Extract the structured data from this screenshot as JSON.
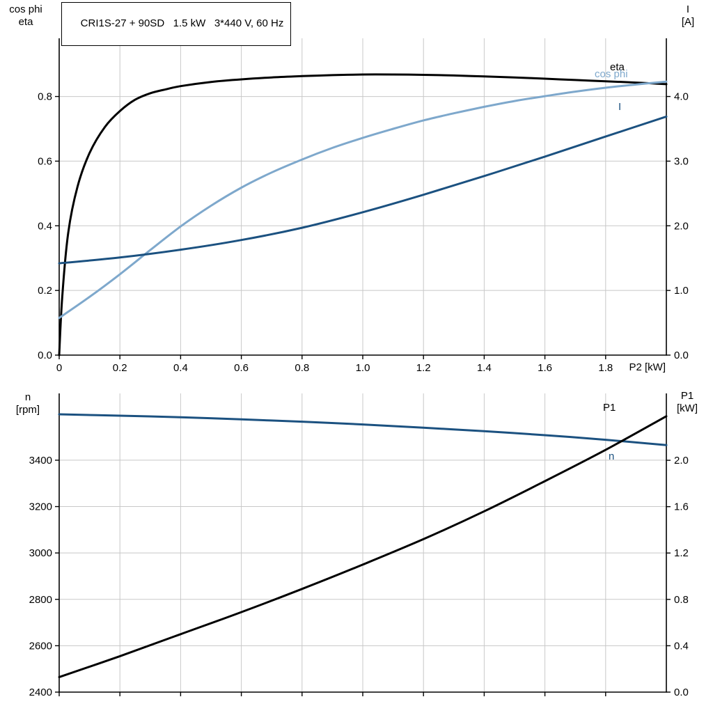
{
  "title_box": {
    "text": "CRI1S-27 + 90SD   1.5 kW   3*440 V, 60 Hz"
  },
  "colors": {
    "black": "#000000",
    "dark_blue": "#1b5180",
    "light_blue": "#7ea8cc",
    "grid": "#c8c8c8"
  },
  "axis_corner_labels": {
    "top_left_line1": "cos phi",
    "top_left_line2": "eta",
    "top_right_line1": "I",
    "top_right_line2": "[A]",
    "x_axis_label": "P2 [kW]",
    "bottom_left_line1": "n",
    "bottom_left_line2": "[rpm]",
    "bottom_right_line1": "P1",
    "bottom_right_line2": "[kW]"
  },
  "chart_data": [
    {
      "type": "line",
      "title": "CRI1S-27 + 90SD   1.5 kW   3*440 V, 60 Hz",
      "x_axis": {
        "label": "P2 [kW]",
        "min": 0,
        "max": 2.0,
        "ticks": [
          0,
          0.2,
          0.4,
          0.6,
          0.8,
          1.0,
          1.2,
          1.4,
          1.6,
          1.8
        ],
        "tick_labels": [
          "0",
          "0.2",
          "0.4",
          "0.6",
          "0.8",
          "1.0",
          "1.2",
          "1.4",
          "1.6",
          "1.8"
        ]
      },
      "y_left_axis": {
        "label": "cos phi / eta",
        "min": 0,
        "max": 0.98,
        "ticks": [
          0.0,
          0.2,
          0.4,
          0.6,
          0.8
        ],
        "tick_labels": [
          "0.0",
          "0.2",
          "0.4",
          "0.6",
          "0.8"
        ]
      },
      "y_right_axis": {
        "label": "I [A]",
        "min": 0,
        "max": 4.9,
        "ticks": [
          0.0,
          1.0,
          2.0,
          3.0,
          4.0
        ],
        "tick_labels": [
          "0.0",
          "1.0",
          "2.0",
          "3.0",
          "4.0"
        ]
      },
      "grid": true,
      "legend_position": "curve-end-labels",
      "series": [
        {
          "name": "eta",
          "axis": "left",
          "color": "#000000",
          "points": [
            [
              0,
              0.0
            ],
            [
              0.01,
              0.18
            ],
            [
              0.03,
              0.38
            ],
            [
              0.06,
              0.52
            ],
            [
              0.1,
              0.625
            ],
            [
              0.15,
              0.705
            ],
            [
              0.2,
              0.755
            ],
            [
              0.25,
              0.79
            ],
            [
              0.3,
              0.81
            ],
            [
              0.35,
              0.822
            ],
            [
              0.4,
              0.832
            ],
            [
              0.5,
              0.845
            ],
            [
              0.6,
              0.853
            ],
            [
              0.7,
              0.859
            ],
            [
              0.8,
              0.863
            ],
            [
              0.9,
              0.866
            ],
            [
              1.0,
              0.868
            ],
            [
              1.1,
              0.868
            ],
            [
              1.2,
              0.867
            ],
            [
              1.3,
              0.865
            ],
            [
              1.4,
              0.862
            ],
            [
              1.5,
              0.859
            ],
            [
              1.6,
              0.855
            ],
            [
              1.7,
              0.851
            ],
            [
              1.8,
              0.847
            ],
            [
              1.9,
              0.843
            ],
            [
              2.0,
              0.838
            ]
          ]
        },
        {
          "name": "cos phi",
          "axis": "left",
          "color": "#7ea8cc",
          "points": [
            [
              0,
              0.115
            ],
            [
              0.1,
              0.18
            ],
            [
              0.2,
              0.25
            ],
            [
              0.3,
              0.325
            ],
            [
              0.4,
              0.398
            ],
            [
              0.5,
              0.462
            ],
            [
              0.6,
              0.518
            ],
            [
              0.7,
              0.565
            ],
            [
              0.8,
              0.605
            ],
            [
              0.9,
              0.641
            ],
            [
              1.0,
              0.672
            ],
            [
              1.1,
              0.7
            ],
            [
              1.2,
              0.726
            ],
            [
              1.3,
              0.748
            ],
            [
              1.4,
              0.768
            ],
            [
              1.5,
              0.786
            ],
            [
              1.6,
              0.801
            ],
            [
              1.7,
              0.815
            ],
            [
              1.8,
              0.827
            ],
            [
              1.9,
              0.837
            ],
            [
              2.0,
              0.846
            ]
          ]
        },
        {
          "name": "I",
          "axis": "right",
          "color": "#1b5180",
          "points": [
            [
              0,
              1.42
            ],
            [
              0.2,
              1.51
            ],
            [
              0.4,
              1.63
            ],
            [
              0.6,
              1.78
            ],
            [
              0.8,
              1.97
            ],
            [
              1.0,
              2.21
            ],
            [
              1.2,
              2.48
            ],
            [
              1.4,
              2.77
            ],
            [
              1.6,
              3.07
            ],
            [
              1.8,
              3.38
            ],
            [
              2.0,
              3.69
            ]
          ]
        }
      ]
    },
    {
      "type": "line",
      "title": "",
      "x_axis": {
        "label": "",
        "min": 0,
        "max": 2.0,
        "ticks": [
          0,
          0.2,
          0.4,
          0.6,
          0.8,
          1.0,
          1.2,
          1.4,
          1.6,
          1.8
        ],
        "tick_labels": []
      },
      "y_left_axis": {
        "label": "n [rpm]",
        "min": 2400,
        "max": 3688,
        "ticks": [
          2400,
          2600,
          2800,
          3000,
          3200,
          3400
        ],
        "tick_labels": [
          "2400",
          "2600",
          "2800",
          "3000",
          "3200",
          "3400"
        ]
      },
      "y_right_axis": {
        "label": "P1 [kW]",
        "min": 0,
        "max": 2.577,
        "ticks": [
          0.0,
          0.4,
          0.8,
          1.2,
          1.6,
          2.0
        ],
        "tick_labels": [
          "0.0",
          "0.4",
          "0.8",
          "1.2",
          "1.6",
          "2.0"
        ]
      },
      "grid": true,
      "legend_position": "curve-end-labels",
      "series": [
        {
          "name": "n",
          "axis": "left",
          "color": "#1b5180",
          "points": [
            [
              0,
              3598
            ],
            [
              0.2,
              3592
            ],
            [
              0.4,
              3585
            ],
            [
              0.6,
              3576
            ],
            [
              0.8,
              3566
            ],
            [
              1.0,
              3554
            ],
            [
              1.2,
              3540
            ],
            [
              1.4,
              3525
            ],
            [
              1.6,
              3508
            ],
            [
              1.8,
              3488
            ],
            [
              2.0,
              3465
            ]
          ]
        },
        {
          "name": "P1",
          "axis": "right",
          "color": "#000000",
          "points": [
            [
              0,
              0.13
            ],
            [
              0.2,
              0.31
            ],
            [
              0.4,
              0.5
            ],
            [
              0.6,
              0.69
            ],
            [
              0.8,
              0.89
            ],
            [
              1.0,
              1.1
            ],
            [
              1.2,
              1.32
            ],
            [
              1.4,
              1.56
            ],
            [
              1.6,
              1.82
            ],
            [
              1.8,
              2.09
            ],
            [
              2.0,
              2.38
            ]
          ]
        }
      ]
    }
  ]
}
